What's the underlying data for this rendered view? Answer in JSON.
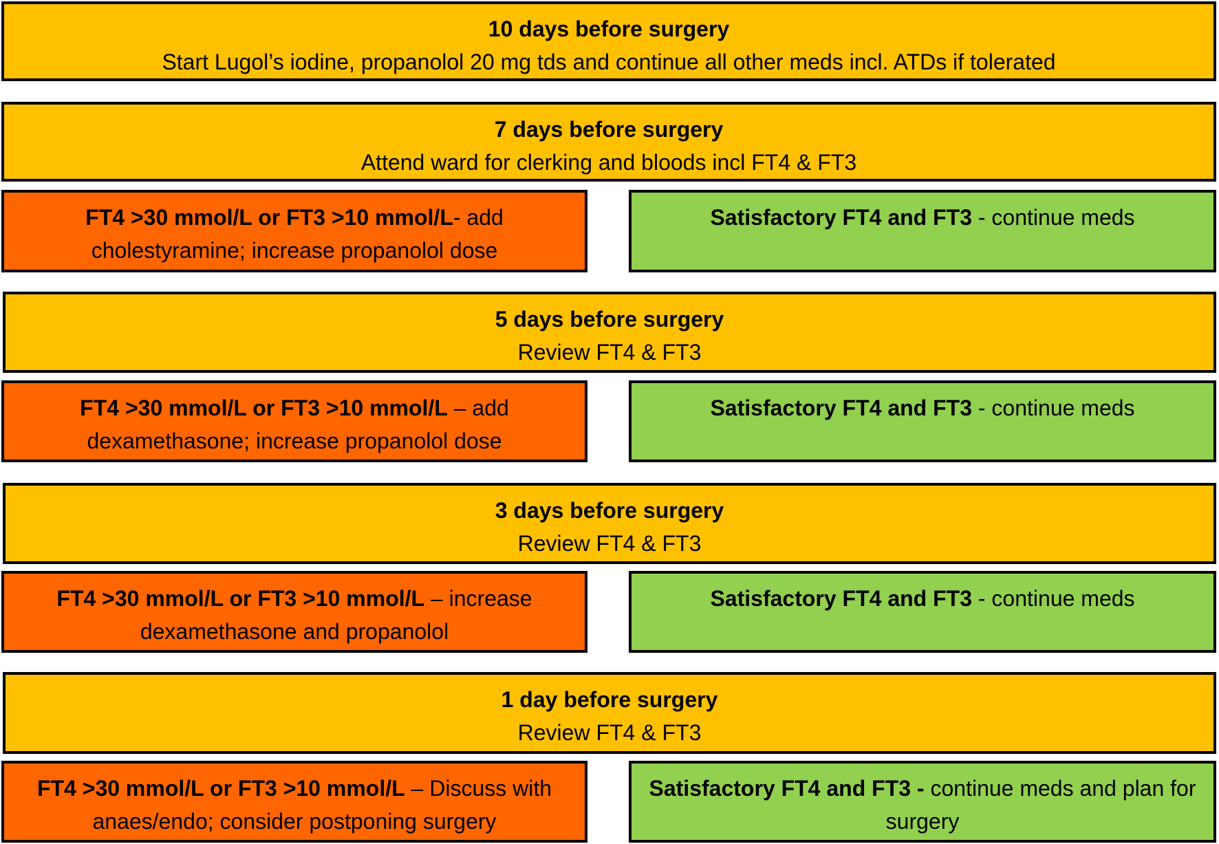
{
  "stages": [
    {
      "title": "10 days before surgery",
      "text": "Start Lugol’s iodine, propanolol 20 mg tds and continue all other meds incl. ATDs if tolerated"
    },
    {
      "title": "7 days before surgery",
      "text": "Attend ward for clerking and bloods incl FT4 & FT3"
    },
    {
      "title": "5 days before surgery",
      "text": "Review FT4 & FT3"
    },
    {
      "title": "3 days before surgery",
      "text": "Review FT4 & FT3"
    },
    {
      "title": "1 day before surgery",
      "text": "Review FT4 & FT3"
    }
  ],
  "outcomes": [
    {
      "abnormal": {
        "bold": "FT4 >30 mmol/L or FT3  >10 mmol/L",
        "rest": "- add cholestyramine; increase propanolol dose"
      },
      "normal": {
        "bold": "Satisfactory FT4 and FT3",
        "rest": " - continue meds"
      }
    },
    {
      "abnormal": {
        "bold": "FT4 >30 mmol/L or FT3  >10 mmol/L",
        "rest": " – add dexamethasone; increase propanolol dose"
      },
      "normal": {
        "bold": "Satisfactory FT4 and FT3",
        "rest": " - continue meds"
      }
    },
    {
      "abnormal": {
        "bold": "FT4 >30 mmol/L or FT3  >10 mmol/L",
        "rest": " – increase dexamethasone and propanolol"
      },
      "normal": {
        "bold": "Satisfactory FT4 and FT3",
        "rest": " - continue meds"
      }
    },
    {
      "abnormal": {
        "bold": "FT4 >30 mmol/L or FT3  >10 mmol/L",
        "rest": " – Discuss with anaes/endo; consider postponing surgery"
      },
      "normal": {
        "bold": "Satisfactory FT4 and FT3 -",
        "rest": " continue meds and plan for surgery"
      }
    }
  ],
  "colors": {
    "stage": "#FFC000",
    "abnormal": "#FF6600",
    "normal": "#92D050"
  }
}
